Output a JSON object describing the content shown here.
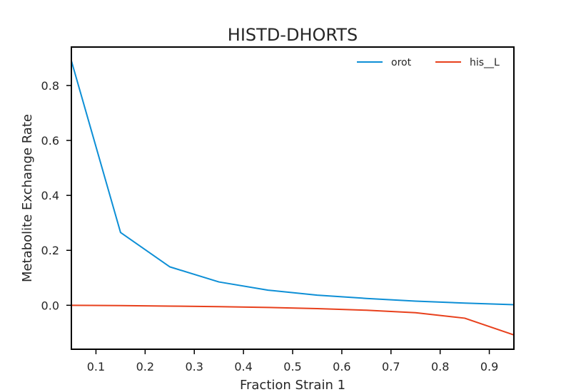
{
  "chart_data": {
    "type": "line",
    "title": "HISTD-DHORTS",
    "xlabel": "Fraction Strain 1",
    "ylabel": "Metabolite Exchange Rate",
    "xlim": [
      0.05,
      0.95
    ],
    "ylim": [
      -0.16,
      0.94
    ],
    "x_ticks": [
      "0.1",
      "0.2",
      "0.3",
      "0.4",
      "0.5",
      "0.6",
      "0.7",
      "0.8",
      "0.9"
    ],
    "y_ticks": [
      "0.0",
      "0.2",
      "0.4",
      "0.6",
      "0.8"
    ],
    "grid": false,
    "legend_position": "top-right",
    "x": [
      0.05,
      0.15,
      0.25,
      0.35,
      0.45,
      0.55,
      0.65,
      0.75,
      0.85,
      0.95
    ],
    "series": [
      {
        "name": "orot",
        "color": "#0d8fd6",
        "values": [
          0.89,
          0.265,
          0.14,
          0.085,
          0.055,
          0.037,
          0.025,
          0.015,
          0.008,
          0.002
        ]
      },
      {
        "name": "his__L",
        "color": "#e8401c",
        "values": [
          0.0,
          -0.001,
          -0.003,
          -0.005,
          -0.008,
          -0.012,
          -0.018,
          -0.027,
          -0.047,
          -0.108
        ]
      }
    ]
  }
}
